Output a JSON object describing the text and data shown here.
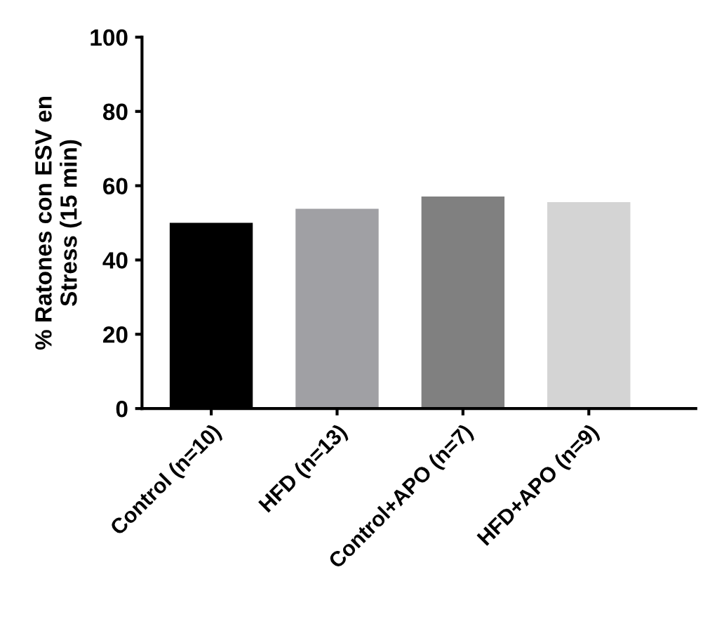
{
  "chart_data": {
    "type": "bar",
    "ylabel": "% Ratones con ESV en\nStress (15 min)",
    "categories": [
      "Control (n=10)",
      "HFD (n=13)",
      "Control+APO (n=7)",
      "HFD+APO (n=9)"
    ],
    "values": [
      50,
      53.8,
      57.1,
      55.6
    ],
    "colors": [
      "#000000",
      "#a0a0a4",
      "#808080",
      "#d4d4d4"
    ],
    "ylim": [
      0,
      100
    ],
    "yticks": [
      0,
      20,
      40,
      60,
      80,
      100
    ],
    "grid": false
  }
}
